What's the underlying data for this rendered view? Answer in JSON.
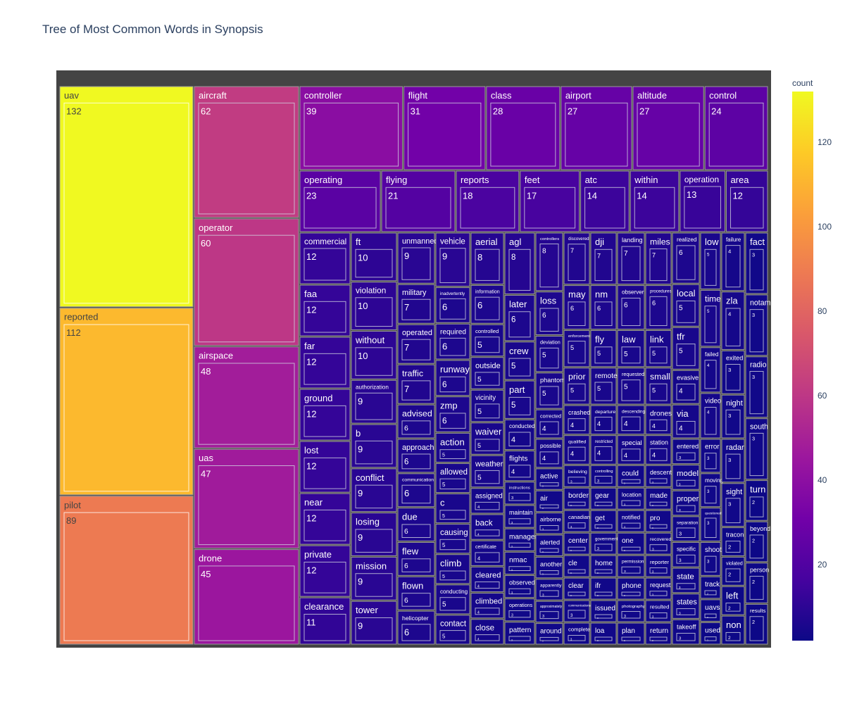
{
  "chart_data": {
    "type": "treemap",
    "title": "Tree of Most Common Words in Synopsis",
    "colorbar": {
      "title": "count",
      "ticks": [
        20,
        40,
        60,
        80,
        100,
        120
      ],
      "range": [
        2,
        132
      ],
      "colorscale": [
        "#0d0887",
        "#46039f",
        "#7201a8",
        "#9c179e",
        "#bd3786",
        "#d8576b",
        "#ed7953",
        "#fb9f3a",
        "#fdca26",
        "#f0f921"
      ]
    },
    "columns": [
      {
        "words": [
          "uav",
          "reported",
          "pilot"
        ],
        "values": [
          132,
          112,
          89
        ]
      },
      {
        "words": [
          "aircraft",
          "operator",
          "airspace",
          "uas",
          "drone"
        ],
        "values": [
          62,
          60,
          48,
          47,
          45
        ]
      },
      {
        "row": true,
        "words": [
          "controller",
          "flight",
          "class",
          "airport",
          "altitude",
          "control"
        ],
        "values": [
          39,
          31,
          28,
          27,
          27,
          24
        ]
      },
      {
        "row": true,
        "words": [
          "operating",
          "flying",
          "reports",
          "feet",
          "atc",
          "within",
          "operation",
          "area"
        ],
        "values": [
          23,
          21,
          18,
          17,
          14,
          14,
          13,
          12
        ]
      },
      {
        "group": "rest",
        "words": [
          "commercial",
          "faa",
          "far",
          "ground",
          "lost",
          "near",
          "private",
          "clearance"
        ],
        "values": [
          12,
          12,
          12,
          12,
          12,
          12,
          12,
          11
        ]
      },
      {
        "group": "rest",
        "words": [
          "ft",
          "violation",
          "without",
          "authorization",
          "b",
          "conflict",
          "losing",
          "mission",
          "tower"
        ],
        "values": [
          10,
          10,
          10,
          9,
          9,
          9,
          9,
          9,
          9
        ]
      },
      {
        "group": "rest",
        "words": [
          "unmanned",
          "military",
          "operated",
          "traffic",
          "advised",
          "approach",
          "communication",
          "due",
          "flew",
          "flown",
          "helicopter"
        ],
        "values": [
          9,
          7,
          7,
          7,
          6,
          6,
          6,
          6,
          6,
          6,
          6
        ]
      },
      {
        "group": "rest",
        "words": [
          "vehicle",
          "inadvertently",
          "required",
          "runway",
          "zmp",
          "action",
          "allowed",
          "c",
          "causing",
          "climb",
          "conducting",
          "contact"
        ],
        "values": [
          9,
          6,
          6,
          6,
          6,
          5,
          5,
          5,
          5,
          5,
          5,
          5
        ]
      },
      {
        "group": "rest",
        "words": [
          "aerial",
          "information",
          "controlled",
          "outside",
          "vicinity",
          "waiver",
          "weather",
          "assigned",
          "back",
          "certificate",
          "cleared",
          "climbed",
          "close"
        ],
        "values": [
          8,
          6,
          5,
          5,
          5,
          5,
          5,
          4,
          4,
          4,
          4,
          4,
          4
        ]
      },
      {
        "group": "rest",
        "words": [
          "agl",
          "later",
          "crew",
          "part",
          "conducted",
          "flights",
          "instructions",
          "maintain",
          "manager",
          "nmac",
          "observed",
          "operations",
          "pattern"
        ],
        "values": [
          8,
          6,
          5,
          5,
          4,
          4,
          3,
          3,
          3,
          3,
          3,
          3,
          3
        ]
      },
      {
        "group": "rest",
        "words": [
          "controllers",
          "loss",
          "deviation",
          "phantom",
          "corrected",
          "possible",
          "active",
          "air",
          "airborne",
          "alerted",
          "another",
          "apparently",
          "approximately",
          "around"
        ],
        "values": [
          8,
          6,
          5,
          5,
          4,
          4,
          3,
          3,
          3,
          3,
          3,
          3,
          3,
          3
        ]
      },
      {
        "group": "rest",
        "words": [
          "discovered",
          "may",
          "enforcement",
          "prior",
          "crashed",
          "qualified",
          "believing",
          "border",
          "canadian",
          "center",
          "cle",
          "clear",
          "communications",
          "complete"
        ],
        "values": [
          7,
          6,
          5,
          5,
          4,
          4,
          3,
          3,
          3,
          3,
          3,
          3,
          3,
          3
        ]
      },
      {
        "group": "rest",
        "words": [
          "dji",
          "nm",
          "fly",
          "remote",
          "departure",
          "restricted",
          "controlling",
          "gear",
          "get",
          "government",
          "home",
          "ifr",
          "issued",
          "loa"
        ],
        "values": [
          7,
          6,
          5,
          5,
          4,
          4,
          3,
          3,
          3,
          3,
          3,
          3,
          3,
          3
        ]
      },
      {
        "group": "rest",
        "words": [
          "landing",
          "observer",
          "law",
          "requested",
          "descending",
          "special",
          "could",
          "location",
          "notified",
          "one",
          "permission",
          "phone",
          "photography",
          "plan"
        ],
        "values": [
          7,
          6,
          5,
          5,
          4,
          4,
          3,
          3,
          3,
          3,
          3,
          3,
          3,
          3
        ]
      },
      {
        "group": "rest",
        "words": [
          "miles",
          "procedures",
          "link",
          "small",
          "drones",
          "station",
          "descent",
          "made",
          "pro",
          "recovered",
          "reporter",
          "request",
          "resulted",
          "return"
        ],
        "values": [
          7,
          6,
          5,
          5,
          4,
          4,
          3,
          3,
          3,
          3,
          3,
          3,
          3,
          3
        ]
      },
      {
        "group": "rest",
        "words": [
          "realized",
          "local",
          "tfr",
          "evasive",
          "via",
          "entered",
          "model",
          "proper",
          "separation",
          "specific",
          "state",
          "states",
          "takeoff"
        ],
        "values": [
          6,
          5,
          5,
          4,
          4,
          3,
          3,
          3,
          3,
          3,
          3,
          3,
          3
        ]
      },
      {
        "group": "rest",
        "words": [
          "low",
          "time",
          "failed",
          "video",
          "error",
          "moving",
          "questioned",
          "shoot",
          "track",
          "uavs",
          "used"
        ],
        "values": [
          5,
          5,
          4,
          4,
          3,
          3,
          3,
          3,
          2,
          2,
          2
        ]
      },
      {
        "group": "rest",
        "words": [
          "failure",
          "zla",
          "exited",
          "night",
          "radar",
          "sight",
          "tracon",
          "violated",
          "left",
          "non"
        ],
        "values": [
          4,
          4,
          3,
          3,
          3,
          3,
          2,
          2,
          2,
          2
        ]
      },
      {
        "group": "rest",
        "words": [
          "fact",
          "notam",
          "radio",
          "south",
          "turn",
          "beyond",
          "person",
          "results"
        ],
        "values": [
          3,
          3,
          3,
          3,
          2,
          2,
          2,
          2
        ]
      }
    ]
  }
}
